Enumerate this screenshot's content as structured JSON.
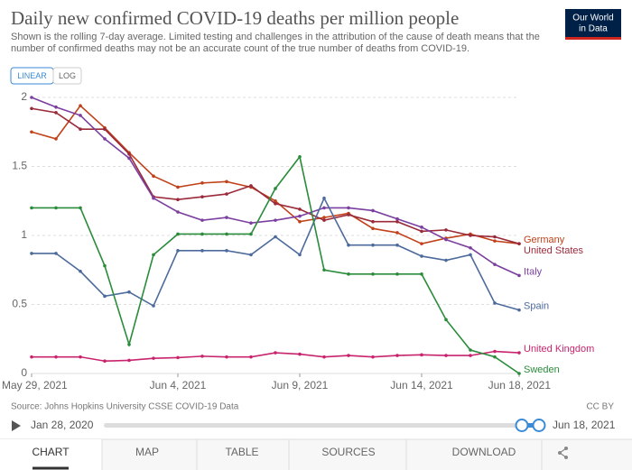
{
  "chart_data": {
    "type": "line",
    "title": "Daily new confirmed COVID-19 deaths per million people",
    "subtitle": [
      "Shown is the rolling 7-day average. Limited testing and challenges in the attribution of the cause of death means that the",
      "number of confirmed deaths may not be an accurate count of the true number of deaths from COVID-19."
    ],
    "categories": [
      "May 29, 2021",
      null,
      null,
      null,
      null,
      null,
      "Jun 4, 2021",
      null,
      null,
      null,
      null,
      "Jun 9, 2021",
      null,
      null,
      null,
      null,
      "Jun 14, 2021",
      null,
      null,
      null,
      "Jun 18, 2021"
    ],
    "series": [
      {
        "name": "Germany",
        "color": "#c0421a",
        "values": [
          1.75,
          1.7,
          1.94,
          1.78,
          1.6,
          1.43,
          1.35,
          1.38,
          1.39,
          1.35,
          1.25,
          1.1,
          1.13,
          1.16,
          1.05,
          1.02,
          0.94,
          0.98,
          1.01,
          0.96,
          0.94
        ]
      },
      {
        "name": "United States",
        "color": "#9a2a3a",
        "values": [
          1.92,
          1.89,
          1.77,
          1.77,
          1.59,
          1.28,
          1.26,
          1.28,
          1.3,
          1.36,
          1.23,
          1.19,
          1.11,
          1.15,
          1.1,
          1.1,
          1.03,
          1.04,
          1.0,
          0.99,
          0.94
        ]
      },
      {
        "name": "Italy",
        "color": "#7b3fa0",
        "values": [
          2.0,
          1.93,
          1.87,
          1.7,
          1.56,
          1.27,
          1.17,
          1.11,
          1.13,
          1.09,
          1.11,
          1.14,
          1.2,
          1.2,
          1.18,
          1.12,
          1.06,
          0.97,
          0.91,
          0.79,
          0.71
        ]
      },
      {
        "name": "Spain",
        "color": "#4c6a9c",
        "values": [
          0.87,
          0.87,
          0.74,
          0.56,
          0.59,
          0.49,
          0.89,
          0.89,
          0.89,
          0.86,
          0.99,
          0.86,
          1.27,
          0.93,
          0.93,
          0.93,
          0.85,
          0.82,
          0.86,
          0.51,
          0.46
        ]
      },
      {
        "name": "United Kingdom",
        "color": "#c8246e",
        "values": [
          0.12,
          0.12,
          0.12,
          0.09,
          0.095,
          0.11,
          0.115,
          0.125,
          0.12,
          0.12,
          0.15,
          0.14,
          0.12,
          0.13,
          0.12,
          0.13,
          0.135,
          0.13,
          0.13,
          0.16,
          0.15
        ]
      },
      {
        "name": "Sweden",
        "color": "#2a8c3b",
        "values": [
          1.2,
          1.2,
          1.2,
          0.78,
          0.21,
          0.86,
          1.01,
          1.01,
          1.01,
          1.01,
          1.34,
          1.57,
          0.75,
          0.72,
          0.72,
          0.72,
          0.72,
          0.39,
          0.17,
          0.12,
          0
        ]
      }
    ],
    "ylim": [
      0,
      2
    ],
    "yticks": [
      0,
      0.5,
      1,
      1.5,
      2
    ],
    "grid": true
  },
  "logo": [
    "Our World",
    "in Data"
  ],
  "scale_toggle": [
    "LINEAR",
    "LOG"
  ],
  "source": "Source: Johns Hopkins University CSSE COVID-19 Data",
  "license": "CC BY",
  "timeline": {
    "start": "Jan 28, 2020",
    "end": "Jun 18, 2021"
  },
  "tabs": [
    "CHART",
    "MAP",
    "TABLE",
    "SOURCES",
    "DOWNLOAD"
  ]
}
